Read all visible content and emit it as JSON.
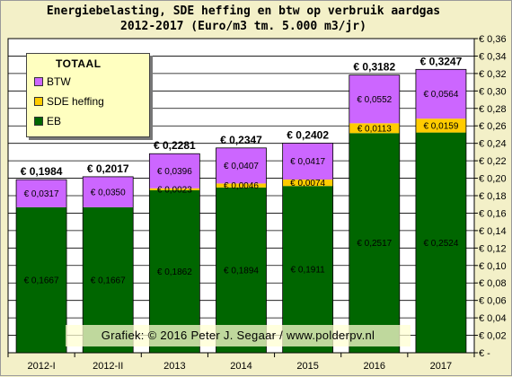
{
  "title_line1": "Energiebelasting, SDE heffing en btw op verbruik aardgas",
  "title_line2": "2012-2017 (Euro/m3 tm. 5.000 m3/jr)",
  "legend": {
    "title": "TOTAAL",
    "items": [
      {
        "label": "BTW",
        "color": "#cc66ff"
      },
      {
        "label": "SDE heffing",
        "color": "#ffcc00"
      },
      {
        "label": "EB",
        "color": "#006600"
      }
    ]
  },
  "credit": "Grafiek: © 2016 Peter J. Segaar / www.polderpv.nl",
  "chart_data": {
    "type": "bar",
    "stacked": true,
    "categories": [
      "2012-I",
      "2012-II",
      "2013",
      "2014",
      "2015",
      "2016",
      "2017"
    ],
    "series": [
      {
        "name": "EB",
        "color": "#006600",
        "values": [
          0.1667,
          0.1667,
          0.1862,
          0.1894,
          0.1911,
          0.2517,
          0.2524
        ],
        "labels": [
          "€ 0,1667",
          "€ 0,1667",
          "€ 0,1862",
          "€ 0,1894",
          "€ 0,1911",
          "€ 0,2517",
          "€ 0,2524"
        ]
      },
      {
        "name": "SDE heffing",
        "color": "#ffcc00",
        "values": [
          0,
          0,
          0.0023,
          0.0046,
          0.0074,
          0.0113,
          0.0159
        ],
        "labels": [
          "",
          "",
          "€ 0,0023",
          "€ 0,0046",
          "€ 0,0074",
          "€ 0,0113",
          "€ 0,0159"
        ]
      },
      {
        "name": "BTW",
        "color": "#cc66ff",
        "values": [
          0.0317,
          0.035,
          0.0396,
          0.0407,
          0.0417,
          0.0552,
          0.0564
        ],
        "labels": [
          "€ 0,0317",
          "€ 0,0350",
          "€ 0,0396",
          "€ 0,0407",
          "€ 0,0417",
          "€ 0,0552",
          "€ 0,0564"
        ]
      }
    ],
    "totals": [
      0.1984,
      0.2017,
      0.2281,
      0.2347,
      0.2402,
      0.3182,
      0.3247
    ],
    "total_labels": [
      "€ 0,1984",
      "€ 0,2017",
      "€ 0,2281",
      "€ 0,2347",
      "€ 0,2402",
      "€ 0,3182",
      "€ 0,3247"
    ],
    "ylim": [
      0,
      0.36
    ],
    "yticks": [
      0,
      0.02,
      0.04,
      0.06,
      0.08,
      0.1,
      0.12,
      0.14,
      0.16,
      0.18,
      0.2,
      0.22,
      0.24,
      0.26,
      0.28,
      0.3,
      0.32,
      0.34,
      0.36
    ],
    "ytick_labels": [
      "€ -",
      "€ 0,02",
      "€ 0,04",
      "€ 0,06",
      "€ 0,08",
      "€ 0,10",
      "€ 0,12",
      "€ 0,14",
      "€ 0,16",
      "€ 0,18",
      "€ 0,20",
      "€ 0,22",
      "€ 0,24",
      "€ 0,26",
      "€ 0,28",
      "€ 0,30",
      "€ 0,32",
      "€ 0,34",
      "€ 0,36"
    ],
    "yaxis_position": "right",
    "grid": true,
    "plot_background": "#ffffff",
    "legend_position": "top-left"
  }
}
